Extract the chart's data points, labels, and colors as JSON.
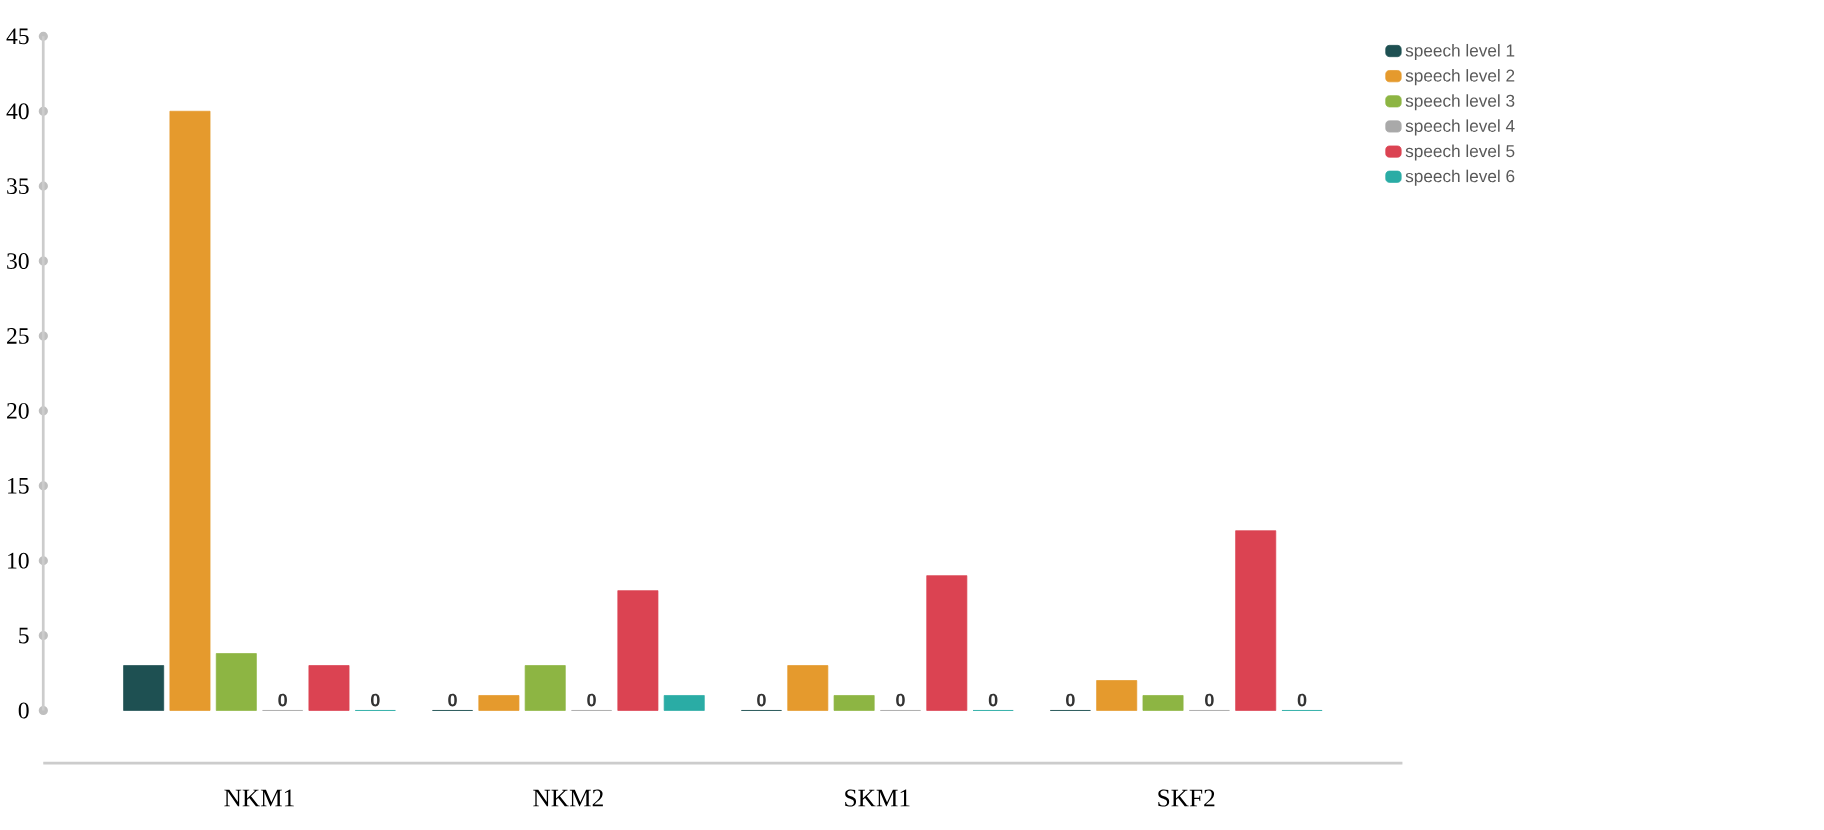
{
  "chart_data": {
    "type": "bar",
    "categories": [
      "NKM1",
      "NKM2",
      "SKM1",
      "SKF2"
    ],
    "series": [
      {
        "name": "speech level 1",
        "color": "#1e5052",
        "values": [
          3,
          0,
          0,
          0
        ],
        "value_labels": [
          null,
          "0",
          "0",
          "0"
        ]
      },
      {
        "name": "speech level 2",
        "color": "#e59a2d",
        "values": [
          40,
          1,
          3,
          2
        ],
        "value_labels": [
          null,
          null,
          null,
          null
        ]
      },
      {
        "name": "speech level 3",
        "color": "#8db543",
        "values": [
          3.8,
          3,
          1,
          1
        ],
        "value_labels": [
          null,
          null,
          null,
          null
        ]
      },
      {
        "name": "speech level 4",
        "color": "#a9a9a9",
        "values": [
          0,
          0,
          0,
          0
        ],
        "value_labels": [
          "0",
          "0",
          "0",
          "0"
        ]
      },
      {
        "name": "speech level 5",
        "color": "#db4352",
        "values": [
          3,
          8,
          9,
          12
        ],
        "value_labels": [
          null,
          null,
          null,
          null
        ]
      },
      {
        "name": "speech level 6",
        "color": "#2aaca5",
        "values": [
          0,
          1,
          0,
          0
        ],
        "value_labels": [
          "0",
          null,
          "0",
          "0"
        ]
      }
    ],
    "ylim": [
      0,
      45
    ],
    "yticks": [
      0,
      5,
      10,
      15,
      20,
      25,
      30,
      35,
      40,
      45
    ],
    "grid": false,
    "legend": "top right"
  }
}
